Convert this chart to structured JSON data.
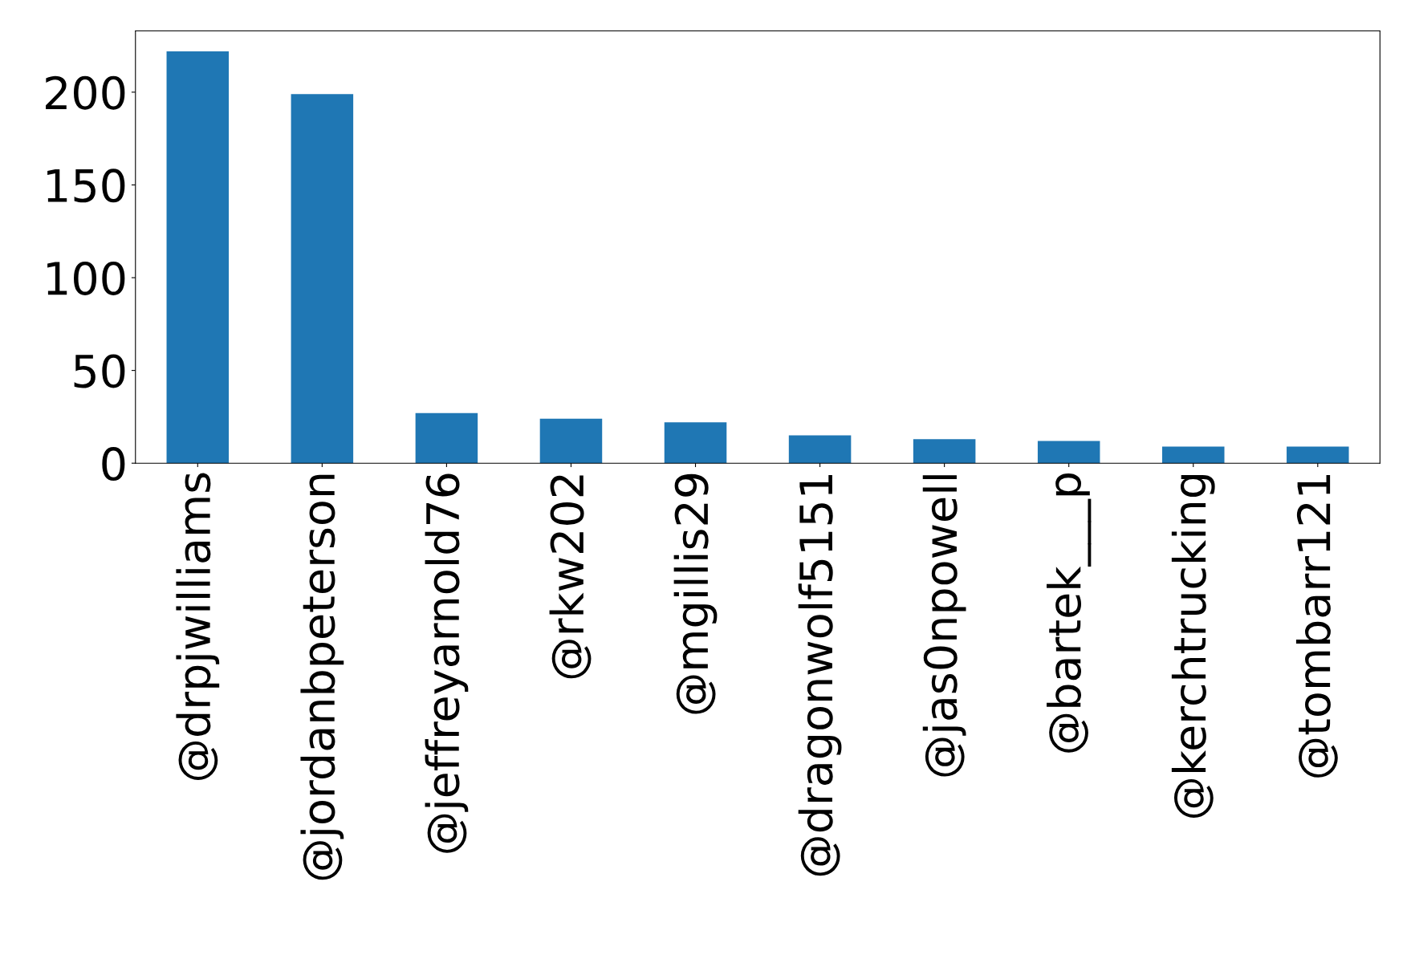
{
  "chart_data": {
    "type": "bar",
    "categories": [
      "@drpjwilliams",
      "@jordanbpeterson",
      "@jeffreyarnold76",
      "@rkw202",
      "@mgillis29",
      "@dragonwolf5151",
      "@jas0npowell",
      "@bartek___p",
      "@kerchtrucking",
      "@tombarr121"
    ],
    "values": [
      222,
      199,
      27,
      24,
      22,
      15,
      13,
      12,
      9,
      9
    ],
    "color": "#1f77b4",
    "ylim": [
      0,
      233
    ],
    "yticks": [
      0,
      50,
      100,
      150,
      200
    ],
    "grid": false,
    "legend": false
  }
}
